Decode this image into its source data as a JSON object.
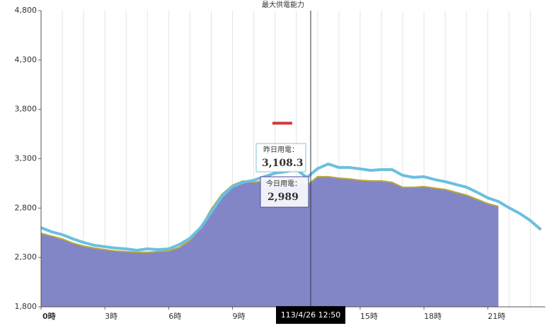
{
  "chart_data": {
    "type": "area_line",
    "title": "最大供電能力",
    "x": [
      0,
      0.5,
      1,
      1.5,
      2,
      2.5,
      3,
      3.5,
      4,
      4.5,
      5,
      5.5,
      6,
      6.5,
      7,
      7.5,
      8,
      8.5,
      9,
      9.5,
      10,
      10.5,
      11,
      11.5,
      12,
      12.5,
      13,
      13.5,
      14,
      14.5,
      15,
      15.5,
      16,
      16.5,
      17,
      17.5,
      18,
      18.5,
      19,
      19.5,
      20,
      20.5,
      21,
      21.5,
      22,
      22.5,
      23,
      23.5
    ],
    "series": [
      {
        "name": "今日用電",
        "color": "#7b7fc4",
        "line_color": "#b8a93a",
        "values": [
          2545,
          2516,
          2488,
          2445,
          2416,
          2395,
          2380,
          2366,
          2359,
          2352,
          2352,
          2359,
          2366,
          2402,
          2473,
          2602,
          2789,
          2939,
          3032,
          3075,
          3061,
          3075,
          3061,
          3082,
          3061,
          3032,
          3118,
          3118,
          3104,
          3096,
          3082,
          3075,
          3075,
          3061,
          3011,
          3011,
          3018,
          3003,
          2989,
          2960,
          2932,
          2889,
          2846,
          2817,
          null,
          null,
          null,
          null
        ]
      },
      {
        "name": "昨日用電",
        "color": "#6bbfe0",
        "values": [
          2602,
          2559,
          2531,
          2488,
          2452,
          2423,
          2409,
          2395,
          2387,
          2373,
          2387,
          2380,
          2387,
          2430,
          2495,
          2602,
          2760,
          2917,
          3018,
          3061,
          3082,
          3118,
          3154,
          3168,
          3190,
          3110,
          3200,
          3247,
          3211,
          3211,
          3197,
          3182,
          3190,
          3190,
          3132,
          3111,
          3118,
          3089,
          3068,
          3039,
          3011,
          2960,
          2903,
          2867,
          2803,
          2746,
          2674,
          2581
        ]
      }
    ],
    "max_supply": {
      "x": 11.34,
      "value": 3660,
      "color": "#d0393b"
    },
    "xlim": [
      0,
      23.7
    ],
    "xticks": [
      {
        "value": 0,
        "label": "0時"
      },
      {
        "value": 3,
        "label": "3時"
      },
      {
        "value": 6,
        "label": "6時"
      },
      {
        "value": 9,
        "label": "9時"
      },
      {
        "value": 15,
        "label": "15時"
      },
      {
        "value": 18,
        "label": "18時"
      },
      {
        "value": 21,
        "label": "21時"
      }
    ],
    "minor_xticks": [
      1,
      2,
      4,
      5,
      7,
      8,
      10,
      11,
      12,
      13,
      14,
      16,
      17,
      19,
      20,
      22,
      23
    ],
    "ylim": [
      1800,
      4800
    ],
    "yticks": [
      {
        "value": 1800,
        "label": "1,800"
      },
      {
        "value": 2300,
        "label": "2,300"
      },
      {
        "value": 2800,
        "label": "2,800"
      },
      {
        "value": 3300,
        "label": "3,300"
      },
      {
        "value": 3800,
        "label": "3,800"
      },
      {
        "value": 4300,
        "label": "4,300"
      },
      {
        "value": 4800,
        "label": "4,800"
      }
    ],
    "grid": true,
    "tooltip": {
      "time": "113/4/26 12:50",
      "yesterday_label": "昨日用電：",
      "yesterday_value": {
        "value": 3108.3,
        "label": "3,108.3"
      },
      "today_label": "今日用電：",
      "today_value": {
        "value": 2989,
        "label": "2,989"
      }
    }
  }
}
